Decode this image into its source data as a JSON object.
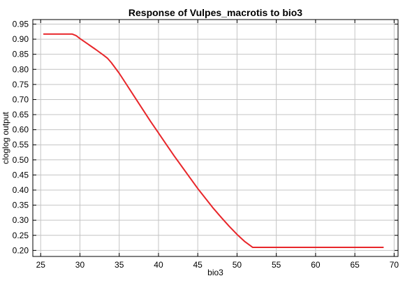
{
  "chart_data": {
    "type": "line",
    "title": "Response of Vulpes_macrotis to bio3",
    "xlabel": "bio3",
    "ylabel": "cloglog output",
    "xlim": [
      24.0,
      70.5
    ],
    "ylim": [
      0.18,
      0.965
    ],
    "xticks": [
      25,
      30,
      35,
      40,
      45,
      50,
      55,
      60,
      65,
      70
    ],
    "yticks": [
      0.2,
      0.25,
      0.3,
      0.35,
      0.4,
      0.45,
      0.5,
      0.55,
      0.6,
      0.65,
      0.7,
      0.75,
      0.8,
      0.85,
      0.9,
      0.95
    ],
    "grid": true,
    "legend": "none",
    "series": [
      {
        "color": "#e8262a",
        "x": [
          25.4,
          29.0,
          29.5,
          30.0,
          31.0,
          32.0,
          33.0,
          33.5,
          34.0,
          35.0,
          36.0,
          37.0,
          38.0,
          39.0,
          40.0,
          41.0,
          42.0,
          43.0,
          44.0,
          45.0,
          46.0,
          47.0,
          48.0,
          49.0,
          50.0,
          51.0,
          52.0,
          53.0,
          60.0,
          68.6
        ],
        "y": [
          0.917,
          0.917,
          0.912,
          0.902,
          0.884,
          0.866,
          0.847,
          0.837,
          0.822,
          0.787,
          0.747,
          0.707,
          0.667,
          0.627,
          0.589,
          0.551,
          0.513,
          0.477,
          0.441,
          0.405,
          0.372,
          0.339,
          0.309,
          0.28,
          0.253,
          0.229,
          0.21,
          0.21,
          0.21,
          0.21
        ]
      }
    ]
  }
}
